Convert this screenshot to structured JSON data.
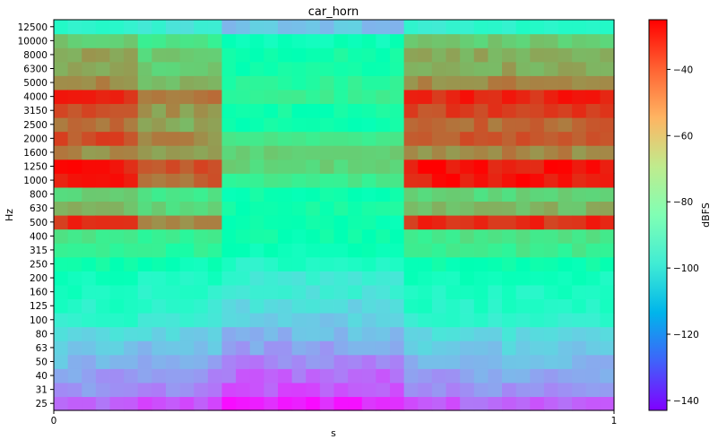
{
  "chart_data": {
    "type": "heatmap",
    "title": "car_horn",
    "xlabel": "s",
    "ylabel": "Hz",
    "x_ticks": [
      "0",
      "1"
    ],
    "xlim": [
      0,
      1
    ],
    "y_categories": [
      "25",
      "31",
      "40",
      "50",
      "63",
      "80",
      "100",
      "125",
      "160",
      "200",
      "250",
      "315",
      "400",
      "500",
      "630",
      "800",
      "1000",
      "1250",
      "1600",
      "2000",
      "2500",
      "3150",
      "4000",
      "5000",
      "6300",
      "8000",
      "10000",
      "12500"
    ],
    "n_time_frames": 40,
    "horn_active_frames": [
      0,
      24
    ],
    "colorbar": {
      "label": "dBFS",
      "ticks": [
        "−40",
        "−60",
        "−80",
        "−100",
        "−120",
        "−140"
      ],
      "tick_values": [
        -40,
        -60,
        -80,
        -100,
        -120,
        -140
      ],
      "range": [
        -143,
        -25
      ],
      "colormap": "rainbow"
    },
    "band_levels_dbfs": {
      "horn_on": [
        -128,
        -120,
        -117,
        -112,
        -108,
        -104,
        -95,
        -92,
        -90,
        -88,
        -82,
        -70,
        -68,
        -32,
        -55,
        -62,
        -28,
        -28,
        -46,
        -37,
        -41,
        -35,
        -30,
        -46,
        -52,
        -52,
        -60,
        -95
      ],
      "horn_off": [
        -138,
        -130,
        -127,
        -122,
        -117,
        -112,
        -108,
        -104,
        -100,
        -98,
        -92,
        -86,
        -82,
        -82,
        -80,
        -82,
        -70,
        -62,
        -62,
        -70,
        -82,
        -80,
        -72,
        -75,
        -80,
        -80,
        -86,
        -110
      ]
    }
  }
}
